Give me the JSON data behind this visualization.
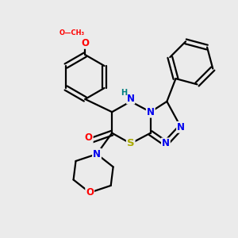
{
  "background_color": "#ebebeb",
  "bond_color": "#000000",
  "bond_width": 1.6,
  "atom_colors": {
    "N": "#0000ee",
    "O": "#ff0000",
    "S": "#aaaa00",
    "NH_color": "#008080",
    "C": "#000000"
  },
  "font_size_atom": 8.5
}
